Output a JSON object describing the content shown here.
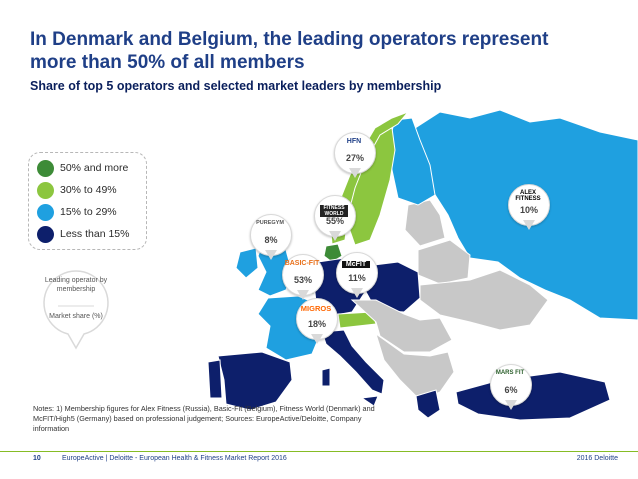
{
  "title": "In Denmark and Belgium, the leading operators represent more than 50% of all members",
  "subtitle": "Share of top 5 operators and selected market leaders by membership",
  "legend": {
    "items": [
      {
        "label": "50% and more",
        "color": "#3d8b37"
      },
      {
        "label": "30% to 49%",
        "color": "#8cc63f"
      },
      {
        "label": "15% to 29%",
        "color": "#1fa0e0"
      },
      {
        "label": "Less than 15%",
        "color": "#0d1f6b"
      }
    ]
  },
  "key_pin": {
    "top": "Leading operator by membership",
    "bottom": "Market share (%)"
  },
  "colors": {
    "other_countries": "#c8c8c8",
    "borders": "#ffffff"
  },
  "pins": [
    {
      "logo": "HFN",
      "value": "27%",
      "logo_color": "#1f3f87"
    },
    {
      "logo": "FITNESS WORLD",
      "value": "55%",
      "logo_color": "#222222"
    },
    {
      "logo": "ALEX FITNESS",
      "value": "10%",
      "logo_color": "#000000"
    },
    {
      "logo": "PUREGYM",
      "value": "8%",
      "logo_color": "#555555"
    },
    {
      "logo": "BASIC-FIT",
      "value": "53%",
      "logo_color": "#e8701a"
    },
    {
      "logo": "McFIT",
      "value": "11%",
      "logo_color": "#ffffff"
    },
    {
      "logo": "MIGROS",
      "value": "18%",
      "logo_color": "#ff6600"
    },
    {
      "logo": "MARS FIT",
      "value": "6%",
      "logo_color": "#2b5f2b"
    }
  ],
  "notes": "Notes: 1) Membership figures for Alex Fitness (Russia), Basic-Fit (Belgium), Fitness World (Denmark) and McFIT/High5 (Germany) based on professional judgement; Sources: EuropeActive/Deloitte, Company information",
  "footer": {
    "page": "10",
    "text": "EuropeActive | Deloitte - European Health & Fitness Market Report 2016",
    "right": "2016 Deloitte"
  }
}
